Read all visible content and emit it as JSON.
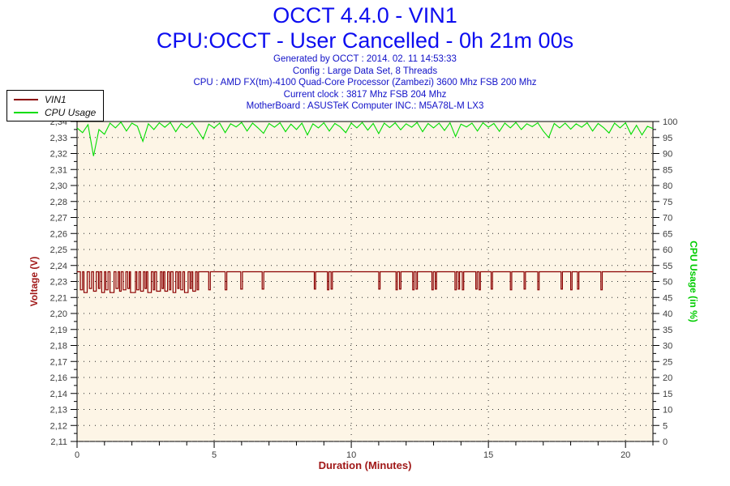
{
  "header": {
    "title_line1": "OCCT 4.4.0 - VIN1",
    "title_line2": "CPU:OCCT - User Cancelled - 0h 21m 00s",
    "info_lines": [
      "Generated by OCCT : 2014. 02. 11 14:53:33",
      "Config : Large Data Set, 8 Threads",
      "CPU : AMD FX(tm)-4100 Quad-Core Processor (Zambezi) 3600 Mhz FSB 200 Mhz",
      "Current clock : 3817 Mhz FSB 204 Mhz",
      "MotherBoard : ASUSTeK Computer INC.: M5A78L-M LX3"
    ],
    "title_color": "#0d0df0",
    "info_color": "#1111c8"
  },
  "legend": {
    "items": [
      {
        "label": "VIN1",
        "color": "#8b0000"
      },
      {
        "label": "CPU Usage",
        "color": "#00dd00"
      }
    ]
  },
  "chart_data": {
    "type": "line",
    "title": "OCCT 4.4.0 - VIN1",
    "x_axis": {
      "label": "Duration (Minutes)",
      "label_color": "#a01818",
      "min": 0,
      "max": 21,
      "minor_tick_interval": 1,
      "labeled_ticks": [
        0,
        5,
        10,
        15,
        20
      ]
    },
    "left_axis": {
      "label": "Voltage (V)",
      "label_color": "#a01818",
      "value_top": 2.34,
      "value_bottom": 2.11,
      "tick_labels": [
        "2,34",
        "2,33",
        "2,32",
        "2,31",
        "2,30",
        "2,28",
        "2,27",
        "2,26",
        "2,25",
        "2,24",
        "2,23",
        "2,21",
        "2,20",
        "2,19",
        "2,18",
        "2,17",
        "2,16",
        "2,14",
        "2,13",
        "2,12",
        "2,11"
      ]
    },
    "right_axis": {
      "label": "CPU Usage (in %)",
      "label_color": "#00cc00",
      "value_top": 100,
      "value_bottom": 0,
      "tick_labels": [
        "100",
        "95",
        "90",
        "85",
        "80",
        "75",
        "70",
        "65",
        "60",
        "55",
        "50",
        "45",
        "40",
        "35",
        "30",
        "25",
        "20",
        "15",
        "10",
        "5",
        "0"
      ]
    },
    "plot": {
      "background": "#fdf5e6",
      "grid_color": "#2a2a2a",
      "frame_color": "#000000",
      "tick_label_color": "#3c3c3c",
      "grid_on": true,
      "legend_position": "top-left"
    },
    "series": [
      {
        "name": "VIN1",
        "axis": "left",
        "color": "#8b0000",
        "baseline": 2.232,
        "pulses": [
          [
            0.12,
            0.08,
            2.219
          ],
          [
            0.25,
            0.12,
            2.217
          ],
          [
            0.45,
            0.08,
            2.22
          ],
          [
            0.6,
            0.1,
            2.218
          ],
          [
            0.78,
            0.05,
            2.22
          ],
          [
            0.9,
            0.1,
            2.217
          ],
          [
            1.05,
            0.08,
            2.219
          ],
          [
            1.2,
            0.15,
            2.217
          ],
          [
            1.42,
            0.08,
            2.22
          ],
          [
            1.55,
            0.06,
            2.218
          ],
          [
            1.68,
            0.1,
            2.219
          ],
          [
            1.85,
            0.06,
            2.22
          ],
          [
            1.95,
            0.18,
            2.217
          ],
          [
            2.18,
            0.08,
            2.219
          ],
          [
            2.32,
            0.1,
            2.218
          ],
          [
            2.48,
            0.05,
            2.22
          ],
          [
            2.58,
            0.13,
            2.217
          ],
          [
            2.78,
            0.05,
            2.219
          ],
          [
            2.9,
            0.14,
            2.218
          ],
          [
            3.1,
            0.05,
            2.22
          ],
          [
            3.2,
            0.1,
            2.218
          ],
          [
            3.37,
            0.05,
            2.219
          ],
          [
            3.5,
            0.1,
            2.217
          ],
          [
            3.67,
            0.05,
            2.22
          ],
          [
            3.78,
            0.08,
            2.219
          ],
          [
            3.92,
            0.13,
            2.217
          ],
          [
            4.12,
            0.05,
            2.22
          ],
          [
            4.22,
            0.1,
            2.218
          ],
          [
            4.38,
            0.05,
            2.219
          ],
          [
            4.8,
            0.06,
            2.219
          ],
          [
            5.4,
            0.06,
            2.219
          ],
          [
            5.97,
            0.06,
            2.2195
          ],
          [
            6.75,
            0.06,
            2.2195
          ],
          [
            8.65,
            0.05,
            2.2195
          ],
          [
            9.13,
            0.05,
            2.219
          ],
          [
            9.26,
            0.05,
            2.2195
          ],
          [
            11.0,
            0.05,
            2.2195
          ],
          [
            11.63,
            0.05,
            2.219
          ],
          [
            11.76,
            0.05,
            2.2195
          ],
          [
            12.24,
            0.05,
            2.219
          ],
          [
            12.36,
            0.05,
            2.2195
          ],
          [
            12.94,
            0.05,
            2.219
          ],
          [
            13.06,
            0.05,
            2.2195
          ],
          [
            13.78,
            0.05,
            2.219
          ],
          [
            13.9,
            0.05,
            2.2195
          ],
          [
            14.05,
            0.05,
            2.219
          ],
          [
            14.54,
            0.05,
            2.2195
          ],
          [
            14.66,
            0.05,
            2.219
          ],
          [
            15.1,
            0.05,
            2.2195
          ],
          [
            15.8,
            0.05,
            2.219
          ],
          [
            16.3,
            0.05,
            2.2195
          ],
          [
            16.8,
            0.05,
            2.219
          ],
          [
            17.65,
            0.05,
            2.2195
          ],
          [
            18.0,
            0.05,
            2.219
          ],
          [
            18.25,
            0.05,
            2.2195
          ],
          [
            19.1,
            0.05,
            2.219
          ]
        ]
      },
      {
        "name": "CPU Usage",
        "axis": "right",
        "color": "#00dd00",
        "x_start": 0,
        "x_step": 0.2,
        "values": [
          98,
          96.5,
          99,
          89.2,
          97.5,
          96,
          99.5,
          98,
          99.8,
          97,
          99.5,
          98.5,
          93.8,
          99.3,
          97.5,
          99.6,
          98.2,
          99.7,
          96.8,
          99.4,
          98,
          99.6,
          97.2,
          94.5,
          99.2,
          98,
          99.5,
          96.5,
          99.3,
          98.3,
          99.7,
          97,
          99.5,
          98,
          96.3,
          99.4,
          98.2,
          99.6,
          96.8,
          99.2,
          97.5,
          99.5,
          95.8,
          99.3,
          98,
          99.6,
          97,
          99.4,
          98.3,
          96.5,
          99.5,
          98,
          99.7,
          97.3,
          99.4,
          96.2,
          99.5,
          98.1,
          99.6,
          97.4,
          99.3,
          98.2,
          99.7,
          96.8,
          99.4,
          98,
          99.5,
          97.2,
          99.6,
          95.3,
          99.2,
          98.3,
          99.5,
          97,
          99.6,
          98.2,
          99.4,
          96.9,
          99.5,
          98,
          99.7,
          97.5,
          99.3,
          98.4,
          99.6,
          97,
          95,
          99.4,
          98,
          99.5,
          97.6,
          99.3,
          98.2,
          99.6,
          97,
          99.4,
          98.1,
          96.4,
          99.5,
          98,
          99.6,
          96,
          98.8,
          95.8,
          98.5,
          97.8
        ]
      }
    ]
  }
}
